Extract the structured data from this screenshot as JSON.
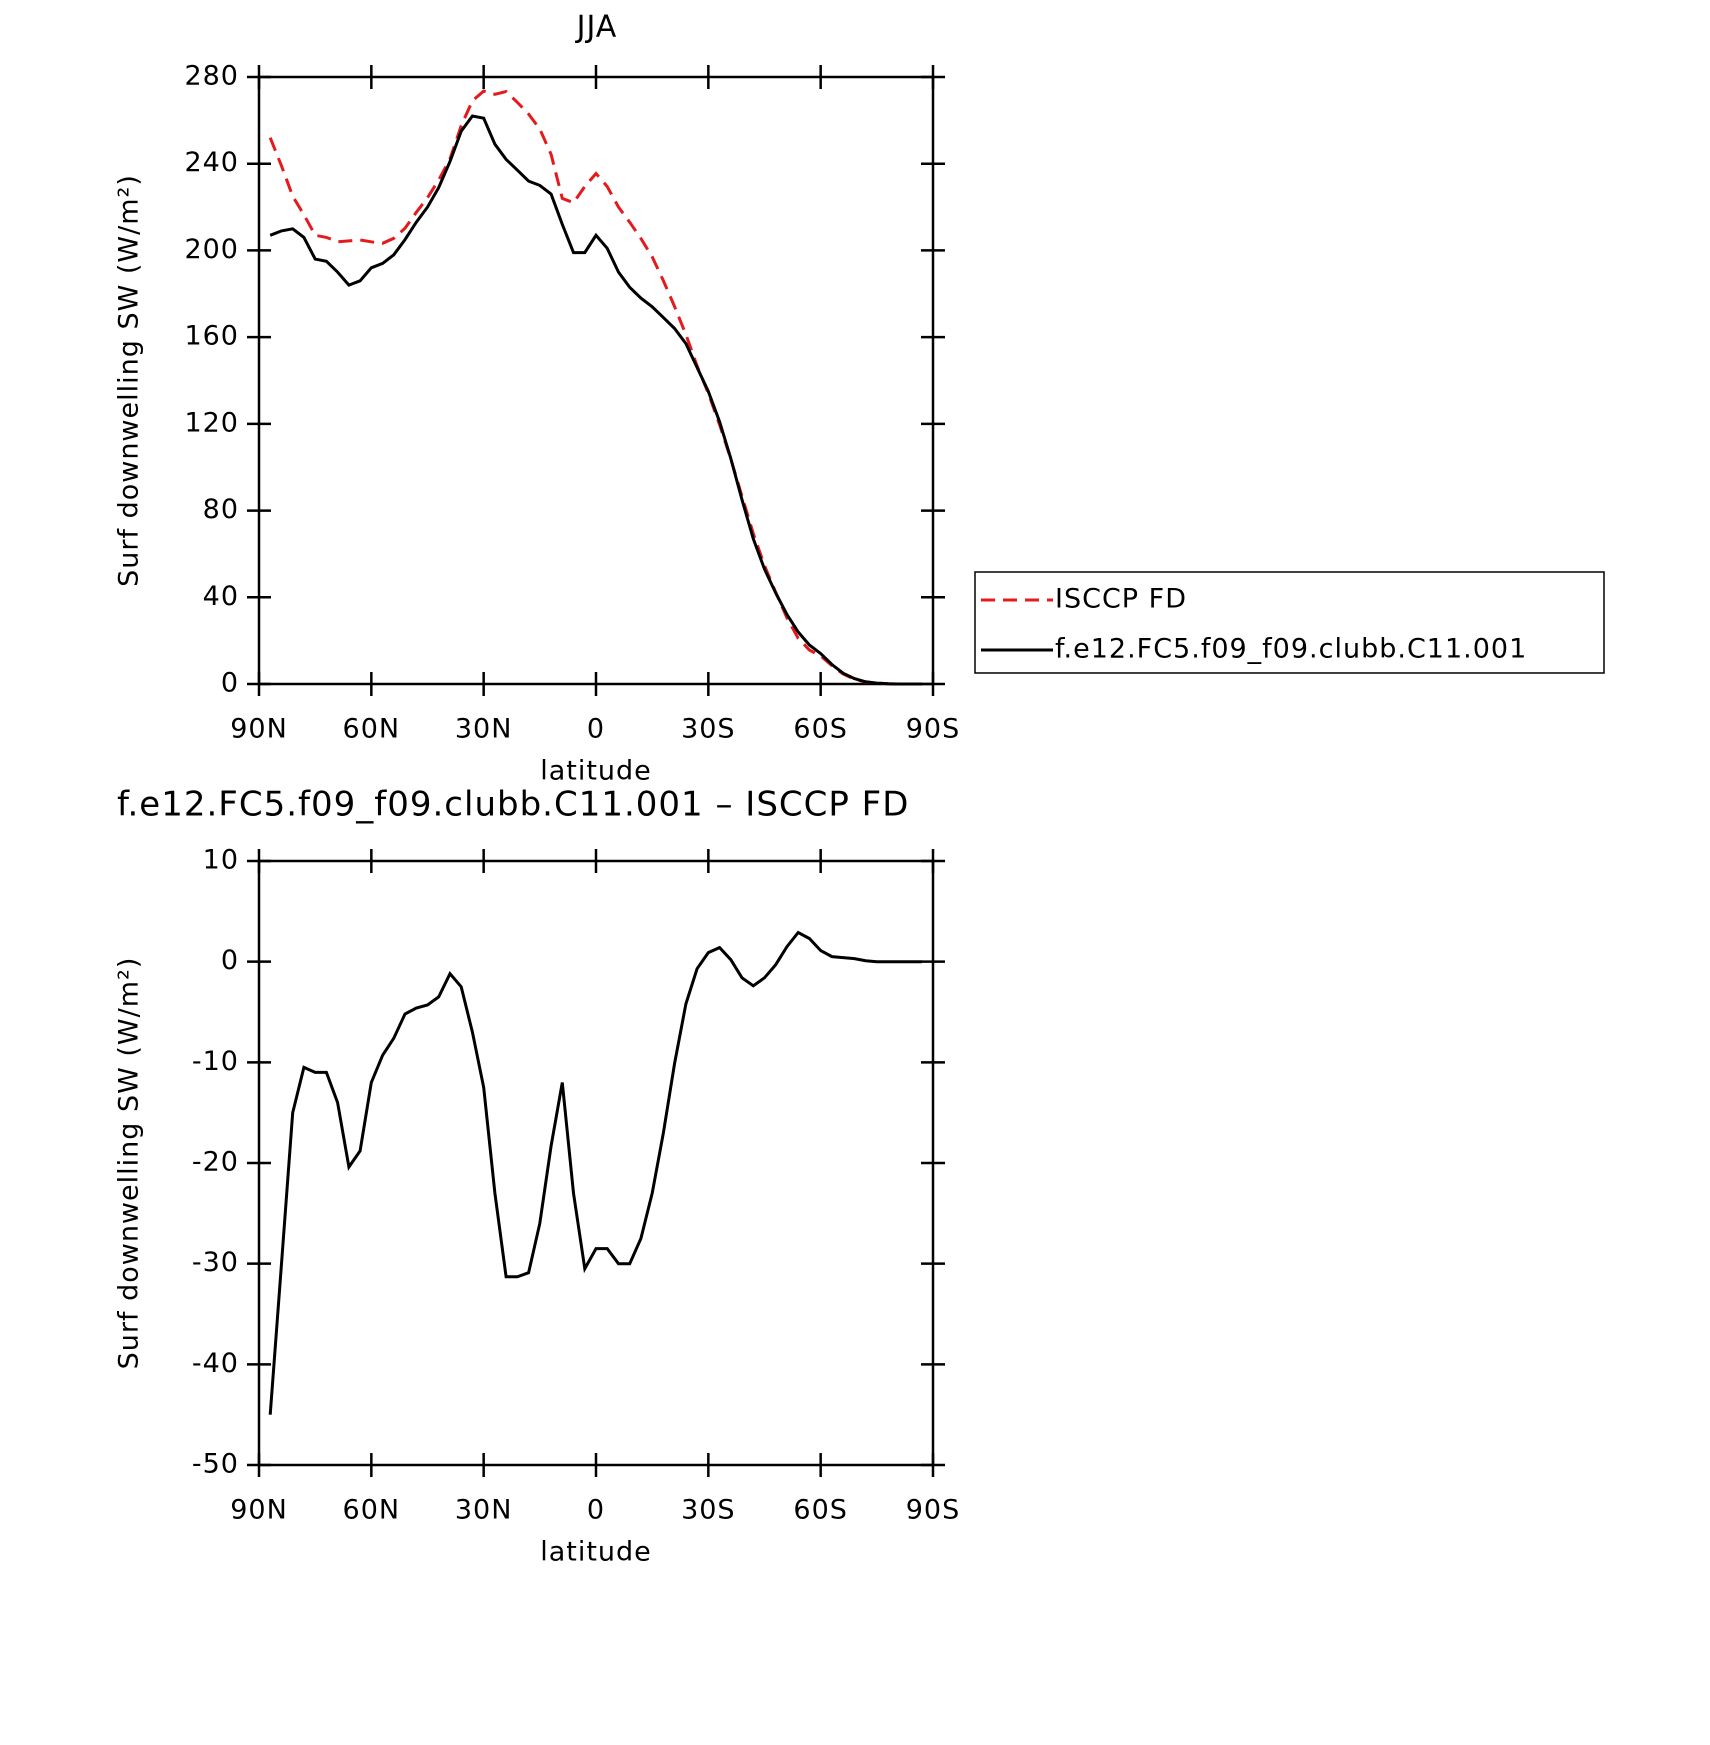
{
  "chart_data": [
    {
      "type": "line",
      "title": "JJA",
      "xlabel": "latitude",
      "ylabel": "Surf downwelling SW (W/m²)",
      "x": [
        87,
        84,
        81,
        78,
        75,
        72,
        69,
        66,
        63,
        60,
        57,
        54,
        51,
        48,
        45,
        42,
        39,
        36,
        33,
        30,
        27,
        24,
        21,
        18,
        15,
        12,
        9,
        6,
        3,
        0,
        -3,
        -6,
        -9,
        -12,
        -15,
        -18,
        -21,
        -24,
        -27,
        -30,
        -33,
        -36,
        -39,
        -42,
        -45,
        -48,
        -51,
        -54,
        -57,
        -60,
        -63,
        -66,
        -69,
        -72,
        -75,
        -78,
        -81,
        -84,
        -87
      ],
      "series": [
        {
          "name": "ISCCP FD",
          "color": "#e41a1c",
          "style": "dashed",
          "values": [
            252,
            239,
            225,
            216.5,
            207,
            206,
            204,
            204.4,
            204.8,
            204,
            203.3,
            205.6,
            210.2,
            217.6,
            224.3,
            232.5,
            242.2,
            257.5,
            269,
            273.5,
            272,
            273.3,
            268.3,
            262.9,
            256,
            244.3,
            224,
            222,
            229.5,
            235.5,
            229.5,
            220,
            213,
            205.5,
            197,
            186,
            174.1,
            161.2,
            146.7,
            134.1,
            119.6,
            103.8,
            86.6,
            69.4,
            54.6,
            42.3,
            30.5,
            21.1,
            15.7,
            12.9,
            8.5,
            4.6,
            2.2,
            0.9,
            0.4,
            0.1,
            0,
            0,
            0
          ]
        },
        {
          "name": "f.e12.FC5.f09_f09.clubb.C11.001",
          "color": "#000000",
          "style": "solid",
          "values": [
            207,
            209,
            210,
            206,
            196,
            195,
            190,
            184,
            186,
            192,
            194,
            198,
            205,
            213,
            220,
            229,
            241,
            255,
            262,
            261,
            249,
            242,
            237,
            232,
            230,
            226,
            212,
            199,
            199,
            207,
            201,
            190,
            183,
            178,
            174,
            169,
            164,
            157,
            146,
            135,
            121,
            104,
            85,
            67,
            53,
            42,
            32,
            24,
            18,
            14,
            9,
            5,
            2.5,
            1,
            0.4,
            0.1,
            0,
            0,
            0
          ]
        }
      ],
      "xlim": [
        90,
        -90
      ],
      "xticks": [
        {
          "value": 90,
          "label": "90N"
        },
        {
          "value": 60,
          "label": "60N"
        },
        {
          "value": 30,
          "label": "30N"
        },
        0,
        {
          "value": -30,
          "label": "30S"
        },
        {
          "value": -60,
          "label": "60S"
        },
        {
          "value": -90,
          "label": "90S"
        }
      ],
      "ylim": [
        0,
        280
      ],
      "yticks": [
        0,
        40,
        80,
        120,
        160,
        200,
        240,
        280
      ],
      "legend": "right"
    },
    {
      "type": "line",
      "title": "f.e12.FC5.f09_f09.clubb.C11.001 – ISCCP FD",
      "xlabel": "latitude",
      "ylabel": "Surf downwelling SW (W/m²)",
      "x": [
        87,
        84,
        81,
        78,
        75,
        72,
        69,
        66,
        63,
        60,
        57,
        54,
        51,
        48,
        45,
        42,
        39,
        36,
        33,
        30,
        27,
        24,
        21,
        18,
        15,
        12,
        9,
        6,
        3,
        0,
        -3,
        -6,
        -9,
        -12,
        -15,
        -18,
        -21,
        -24,
        -27,
        -30,
        -33,
        -36,
        -39,
        -42,
        -45,
        -48,
        -51,
        -54,
        -57,
        -60,
        -63,
        -66,
        -69,
        -72,
        -75,
        -78,
        -81,
        -84,
        -87
      ],
      "series": [
        {
          "color": "#000000",
          "style": "solid",
          "values": [
            -45,
            -30,
            -15,
            -10.5,
            -11,
            -11,
            -14,
            -20.4,
            -18.8,
            -12,
            -9.3,
            -7.6,
            -5.2,
            -4.6,
            -4.3,
            -3.5,
            -1.2,
            -2.5,
            -7,
            -12.5,
            -23,
            -31.3,
            -31.3,
            -30.9,
            -26,
            -18.3,
            -12,
            -23,
            -30.5,
            -28.5,
            -28.5,
            -30,
            -30,
            -27.5,
            -23,
            -17,
            -10.1,
            -4.2,
            -0.7,
            0.9,
            1.4,
            0.2,
            -1.6,
            -2.4,
            -1.6,
            -0.3,
            1.5,
            2.9,
            2.3,
            1.1,
            0.5,
            0.4,
            0.3,
            0.1,
            0,
            0,
            0,
            0,
            0
          ]
        }
      ],
      "xlim": [
        90,
        -90
      ],
      "xticks": [
        {
          "value": 90,
          "label": "90N"
        },
        {
          "value": 60,
          "label": "60N"
        },
        {
          "value": 30,
          "label": "30N"
        },
        0,
        {
          "value": -30,
          "label": "30S"
        },
        {
          "value": -60,
          "label": "60S"
        },
        {
          "value": -90,
          "label": "90S"
        }
      ],
      "ylim": [
        -50,
        10
      ],
      "yticks": [
        -50,
        -40,
        -30,
        -20,
        -10,
        0,
        10
      ]
    }
  ]
}
